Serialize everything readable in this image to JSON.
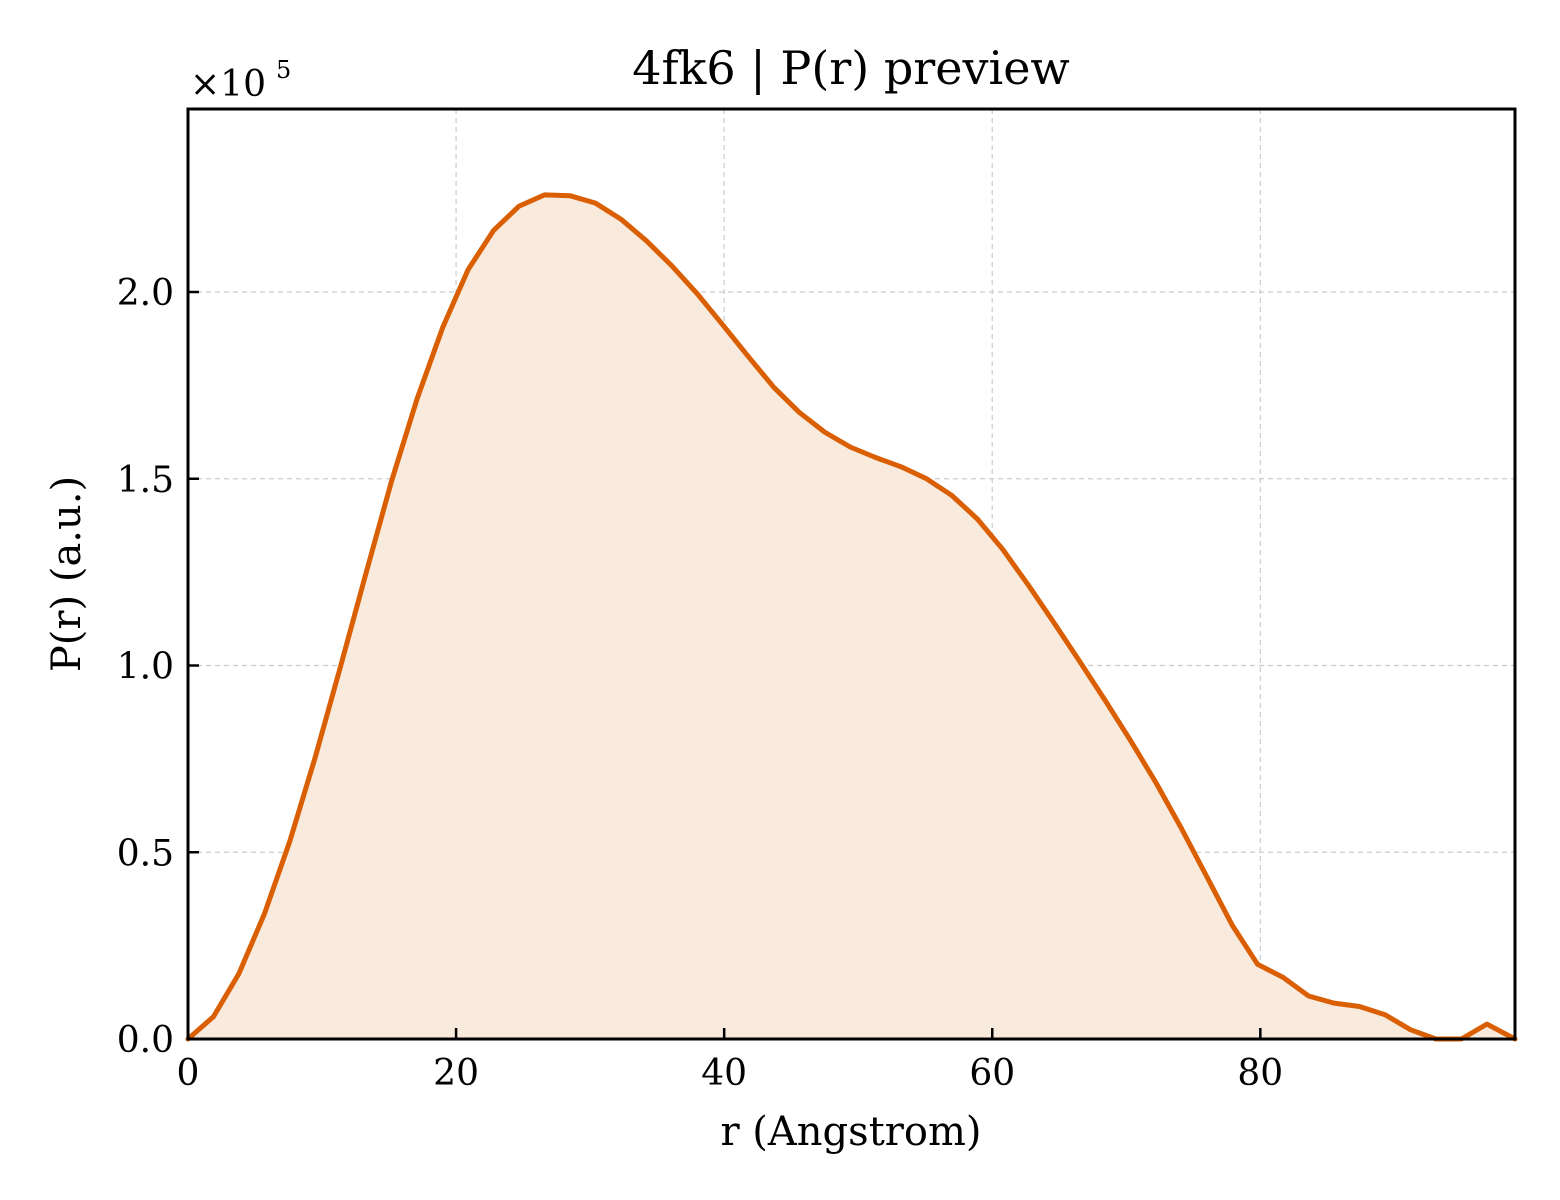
{
  "chart_data": {
    "type": "area",
    "title": "4fk6 | P(r) preview",
    "xlabel": "r (Angstrom)",
    "ylabel": "P(r) (a.u.)",
    "y_offset_text": "×10",
    "y_offset_exponent": "5",
    "xlim": [
      0,
      99
    ],
    "ylim": [
      0,
      2.49
    ],
    "xticks": [
      0,
      20,
      40,
      60,
      80
    ],
    "xtick_labels": [
      "0",
      "20",
      "40",
      "60",
      "80"
    ],
    "yticks": [
      0,
      0.5,
      1.0,
      1.5,
      2.0
    ],
    "ytick_labels": [
      "0.0",
      "0.5",
      "1.0",
      "1.5",
      "2.0"
    ],
    "grid": true,
    "line_color": "#d95f02",
    "fill_color": "#f9eade",
    "series": [
      {
        "x": [
          0,
          1.9,
          3.8,
          5.7,
          7.6,
          9.5,
          11.4,
          13.3,
          15.2,
          17.1,
          19.0,
          20.9,
          22.8,
          24.7,
          26.6,
          28.5,
          30.4,
          32.3,
          34.2,
          36.1,
          38.0,
          39.9,
          41.8,
          43.7,
          45.6,
          47.5,
          49.4,
          51.3,
          53.2,
          55.1,
          57.0,
          58.9,
          60.8,
          62.7,
          64.6,
          66.5,
          68.4,
          70.3,
          72.2,
          74.1,
          76.0,
          77.9,
          79.8,
          81.7,
          83.6,
          85.5,
          87.4,
          89.3,
          91.2,
          93.1,
          95.0,
          96.9,
          99.0
        ],
        "y": [
          0.0,
          0.06,
          0.175,
          0.335,
          0.53,
          0.755,
          1.0,
          1.25,
          1.495,
          1.715,
          1.905,
          2.06,
          2.165,
          2.23,
          2.26,
          2.258,
          2.238,
          2.195,
          2.137,
          2.07,
          1.995,
          1.912,
          1.827,
          1.745,
          1.678,
          1.625,
          1.585,
          1.557,
          1.532,
          1.5,
          1.455,
          1.392,
          1.31,
          1.215,
          1.115,
          1.012,
          0.908,
          0.8,
          0.687,
          0.565,
          0.435,
          0.305,
          0.2,
          0.165,
          0.115,
          0.096,
          0.087,
          0.065,
          0.025,
          -0.01,
          -0.005,
          0.04,
          0.0
        ]
      }
    ]
  }
}
